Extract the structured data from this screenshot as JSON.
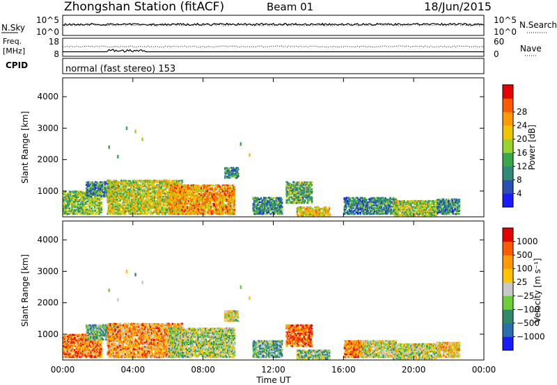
{
  "header": {
    "title": "Zhongshan Station (fitACF)",
    "beam": "Beam 01",
    "date": "18/Jun/2015"
  },
  "top_panels": {
    "nsky_label": "N.Sky",
    "nsearch_label": "N.Search",
    "nsky_ticks": [
      "10^5",
      "10^0"
    ],
    "nsearch_ticks": [
      "10^5",
      "10^0"
    ],
    "freq_label_1": "Freq.",
    "freq_label_2": "[MHz]",
    "freq_ticks": [
      "18",
      "8"
    ],
    "nave_label": "Nave",
    "nave_ticks": [
      "60",
      "0"
    ],
    "cpid_label": "CPID",
    "cpid_text": "normal (fast stereo) 153"
  },
  "chart_data": [
    {
      "type": "heatmap",
      "name": "power",
      "ylabel": "Slant Range [km]",
      "xlabel": "",
      "xlim": [
        0,
        24
      ],
      "ylim": [
        180,
        4600
      ],
      "y_ticks": [
        1000,
        2000,
        3000,
        4000
      ],
      "colorbar": {
        "label": "Power [dB]",
        "ticks": [
          "4",
          "8",
          "12",
          "16",
          "20",
          "24",
          "28"
        ],
        "colors": [
          "#1a1aff",
          "#2b4fb3",
          "#2f8a7a",
          "#3aa84a",
          "#9ad12d",
          "#f0c400",
          "#ff9a00",
          "#ff5a00",
          "#e60000"
        ]
      },
      "regions": [
        {
          "t0": 0.0,
          "t1": 2.2,
          "r0": 250,
          "r1": 1000,
          "level": 0.45
        },
        {
          "t0": 1.3,
          "t1": 3.2,
          "r0": 800,
          "r1": 1300,
          "level": 0.3
        },
        {
          "t0": 2.5,
          "t1": 6.8,
          "r0": 250,
          "r1": 1350,
          "level": 0.55
        },
        {
          "t0": 6.0,
          "t1": 9.8,
          "r0": 250,
          "r1": 1200,
          "level": 0.7
        },
        {
          "t0": 9.2,
          "t1": 10.0,
          "r0": 1400,
          "r1": 1750,
          "level": 0.3
        },
        {
          "t0": 10.8,
          "t1": 12.5,
          "r0": 250,
          "r1": 800,
          "level": 0.3
        },
        {
          "t0": 12.7,
          "t1": 14.2,
          "r0": 600,
          "r1": 1300,
          "level": 0.4
        },
        {
          "t0": 13.3,
          "t1": 15.2,
          "r0": 200,
          "r1": 500,
          "level": 0.6
        },
        {
          "t0": 16.0,
          "t1": 17.3,
          "r0": 250,
          "r1": 800,
          "level": 0.25
        },
        {
          "t0": 17.0,
          "t1": 19.0,
          "r0": 250,
          "r1": 800,
          "level": 0.3
        },
        {
          "t0": 18.8,
          "t1": 21.3,
          "r0": 200,
          "r1": 700,
          "level": 0.5
        },
        {
          "t0": 21.3,
          "t1": 22.6,
          "r0": 250,
          "r1": 750,
          "level": 0.3
        }
      ]
    },
    {
      "type": "heatmap",
      "name": "velocity",
      "ylabel": "Slant Range [km]",
      "xlabel": "Time UT",
      "xlim": [
        0,
        24
      ],
      "ylim": [
        180,
        4600
      ],
      "x_ticks": [
        "00:00",
        "04:00",
        "08:00",
        "12:00",
        "16:00",
        "20:00",
        "00:00"
      ],
      "y_ticks": [
        1000,
        2000,
        3000,
        4000
      ],
      "colorbar": {
        "label": "Velocity [m s⁻¹]",
        "ticks": [
          "1000",
          "500",
          "100",
          "25",
          "-25",
          "-100",
          "-500",
          "-1000"
        ],
        "colors": [
          "#1a1aff",
          "#2b6fb3",
          "#2f8a6a",
          "#6ccf3a",
          "#c8c8c8",
          "#ffc400",
          "#ff9a00",
          "#ff5a00",
          "#e60000"
        ]
      },
      "regions": [
        {
          "t0": 0.0,
          "t1": 2.2,
          "r0": 250,
          "r1": 1000,
          "level": 0.75
        },
        {
          "t0": 1.3,
          "t1": 3.2,
          "r0": 800,
          "r1": 1300,
          "level": 0.35
        },
        {
          "t0": 2.5,
          "t1": 6.8,
          "r0": 250,
          "r1": 1350,
          "level": 0.7
        },
        {
          "t0": 6.0,
          "t1": 9.8,
          "r0": 250,
          "r1": 1200,
          "level": 0.45
        },
        {
          "t0": 9.2,
          "t1": 10.0,
          "r0": 1400,
          "r1": 1750,
          "level": 0.5
        },
        {
          "t0": 10.8,
          "t1": 12.5,
          "r0": 250,
          "r1": 800,
          "level": 0.35
        },
        {
          "t0": 12.7,
          "t1": 14.2,
          "r0": 600,
          "r1": 1300,
          "level": 0.8
        },
        {
          "t0": 13.3,
          "t1": 15.2,
          "r0": 200,
          "r1": 500,
          "level": 0.4
        },
        {
          "t0": 16.0,
          "t1": 17.3,
          "r0": 250,
          "r1": 800,
          "level": 0.75
        },
        {
          "t0": 17.0,
          "t1": 19.0,
          "r0": 250,
          "r1": 800,
          "level": 0.5
        },
        {
          "t0": 18.8,
          "t1": 21.3,
          "r0": 200,
          "r1": 700,
          "level": 0.5
        },
        {
          "t0": 21.3,
          "t1": 22.6,
          "r0": 250,
          "r1": 750,
          "level": 0.6
        }
      ]
    }
  ]
}
